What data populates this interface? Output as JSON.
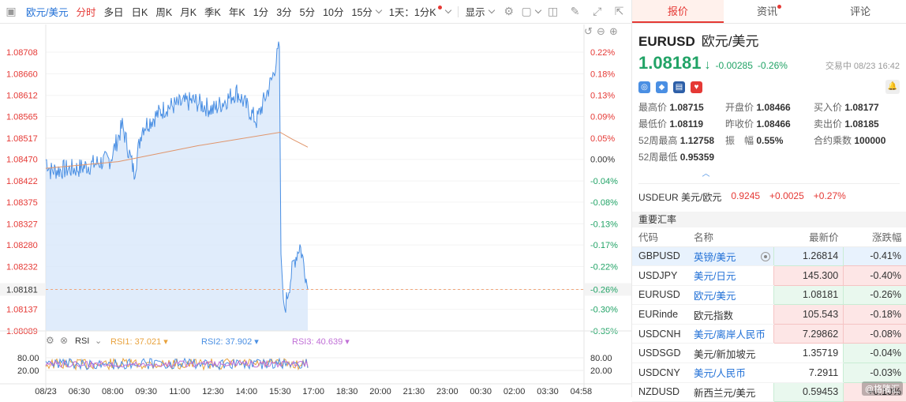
{
  "toolbar": {
    "symbol": "欧元/美元",
    "items": [
      "分时",
      "多日",
      "日K",
      "周K",
      "月K",
      "季K",
      "年K",
      "1分",
      "3分",
      "5分",
      "10分",
      "15分"
    ],
    "interval": "1天：1分K",
    "display": "显示"
  },
  "chart": {
    "prices": [
      1.08708,
      1.0866,
      1.08612,
      1.08565,
      1.08517,
      1.0847,
      1.08422,
      1.08375,
      1.08327,
      1.0828,
      1.08232,
      1.08181,
      1.08137,
      1.08089
    ],
    "percents": [
      "0.22%",
      "0.18%",
      "0.13%",
      "0.09%",
      "0.05%",
      "0.00%",
      "-0.04%",
      "-0.08%",
      "-0.13%",
      "-0.17%",
      "-0.22%",
      "-0.26%",
      "-0.30%",
      "-0.35%"
    ],
    "current_price_label": "1.08181",
    "current_pct_label": "-0.26%",
    "times": [
      "08/23",
      "06:30",
      "08:00",
      "09:30",
      "11:00",
      "12:30",
      "14:00",
      "15:30",
      "17:00",
      "18:30",
      "20:00",
      "21:30",
      "23:00",
      "00:30",
      "02:00",
      "03:30",
      "04:58"
    ],
    "rsi_title": "RSI",
    "rsi1": "RSI1: 37.021",
    "rsi2": "RSI2: 37.902",
    "rsi3": "RSI3: 40.639",
    "rsi_ticks": [
      "80.00",
      "20.00"
    ],
    "colors": {
      "line": "#4a8fe3",
      "avg": "#e0956b",
      "fill": "#d6e6fa",
      "up": "#e53935",
      "down": "#21a366",
      "rsi1": "#e8a23d",
      "rsi2": "#4a8fe3",
      "rsi3": "#c06fd6"
    }
  },
  "tabs": [
    "报价",
    "资讯",
    "评论"
  ],
  "quote": {
    "code": "EURUSD",
    "name": "欧元/美元",
    "price": "1.08181",
    "change": "-0.00285",
    "pct": "-0.26%",
    "status": "交易中 08/23 16:42"
  },
  "stats": [
    [
      "最高价",
      "1.08715",
      "red"
    ],
    [
      "开盘价",
      "1.08466",
      ""
    ],
    [
      "买入价",
      "1.08177",
      "grn"
    ],
    [
      "最低价",
      "1.08119",
      "grn"
    ],
    [
      "昨收价",
      "1.08466",
      ""
    ],
    [
      "卖出价",
      "1.08185",
      "grn"
    ],
    [
      "52周最高",
      "1.12758",
      "red"
    ],
    [
      "振　幅",
      "0.55%",
      ""
    ],
    [
      "合约乘数",
      "100000",
      ""
    ],
    [
      "52周最低",
      "0.95359",
      "grn"
    ]
  ],
  "usdeur": {
    "label": "USDEUR 美元/欧元",
    "price": "0.9245",
    "change": "+0.0025",
    "pct": "+0.27%"
  },
  "important": {
    "title": "重要汇率",
    "headers": [
      "代码",
      "名称",
      "最新价",
      "涨跌幅"
    ],
    "rows": [
      {
        "code": "GBPUSD",
        "name": "英镑/美元",
        "price": "1.26814",
        "pct": "-0.41%",
        "pc": "g",
        "cc": "r",
        "link": true,
        "sel": true
      },
      {
        "code": "USDJPY",
        "name": "美元/日元",
        "price": "145.300",
        "pct": "-0.40%",
        "pc": "r",
        "cc": "r",
        "link": true
      },
      {
        "code": "EURUSD",
        "name": "欧元/美元",
        "price": "1.08181",
        "pct": "-0.26%",
        "pc": "g",
        "cc": "g",
        "link": true
      },
      {
        "code": "EURinde",
        "name": "欧元指数",
        "price": "105.543",
        "pct": "-0.18%",
        "pc": "r",
        "cc": "r",
        "link": false
      },
      {
        "code": "USDCNH",
        "name": "美元/离岸人民币",
        "price": "7.29862",
        "pct": "-0.08%",
        "pc": "r",
        "cc": "r",
        "link": true
      },
      {
        "code": "USDSGD",
        "name": "美元/新加坡元",
        "price": "1.35719",
        "pct": "-0.04%",
        "pc": "",
        "cc": "g",
        "link": false
      },
      {
        "code": "USDCNY",
        "name": "美元/人民币",
        "price": "7.2911",
        "pct": "-0.03%",
        "pc": "",
        "cc": "g",
        "link": true
      },
      {
        "code": "NZDUSD",
        "name": "新西兰元/美元",
        "price": "0.59453",
        "pct": "+0.10%",
        "pc": "g",
        "cc": "r",
        "link": false
      }
    ]
  },
  "watermark": "@格隆汇"
}
